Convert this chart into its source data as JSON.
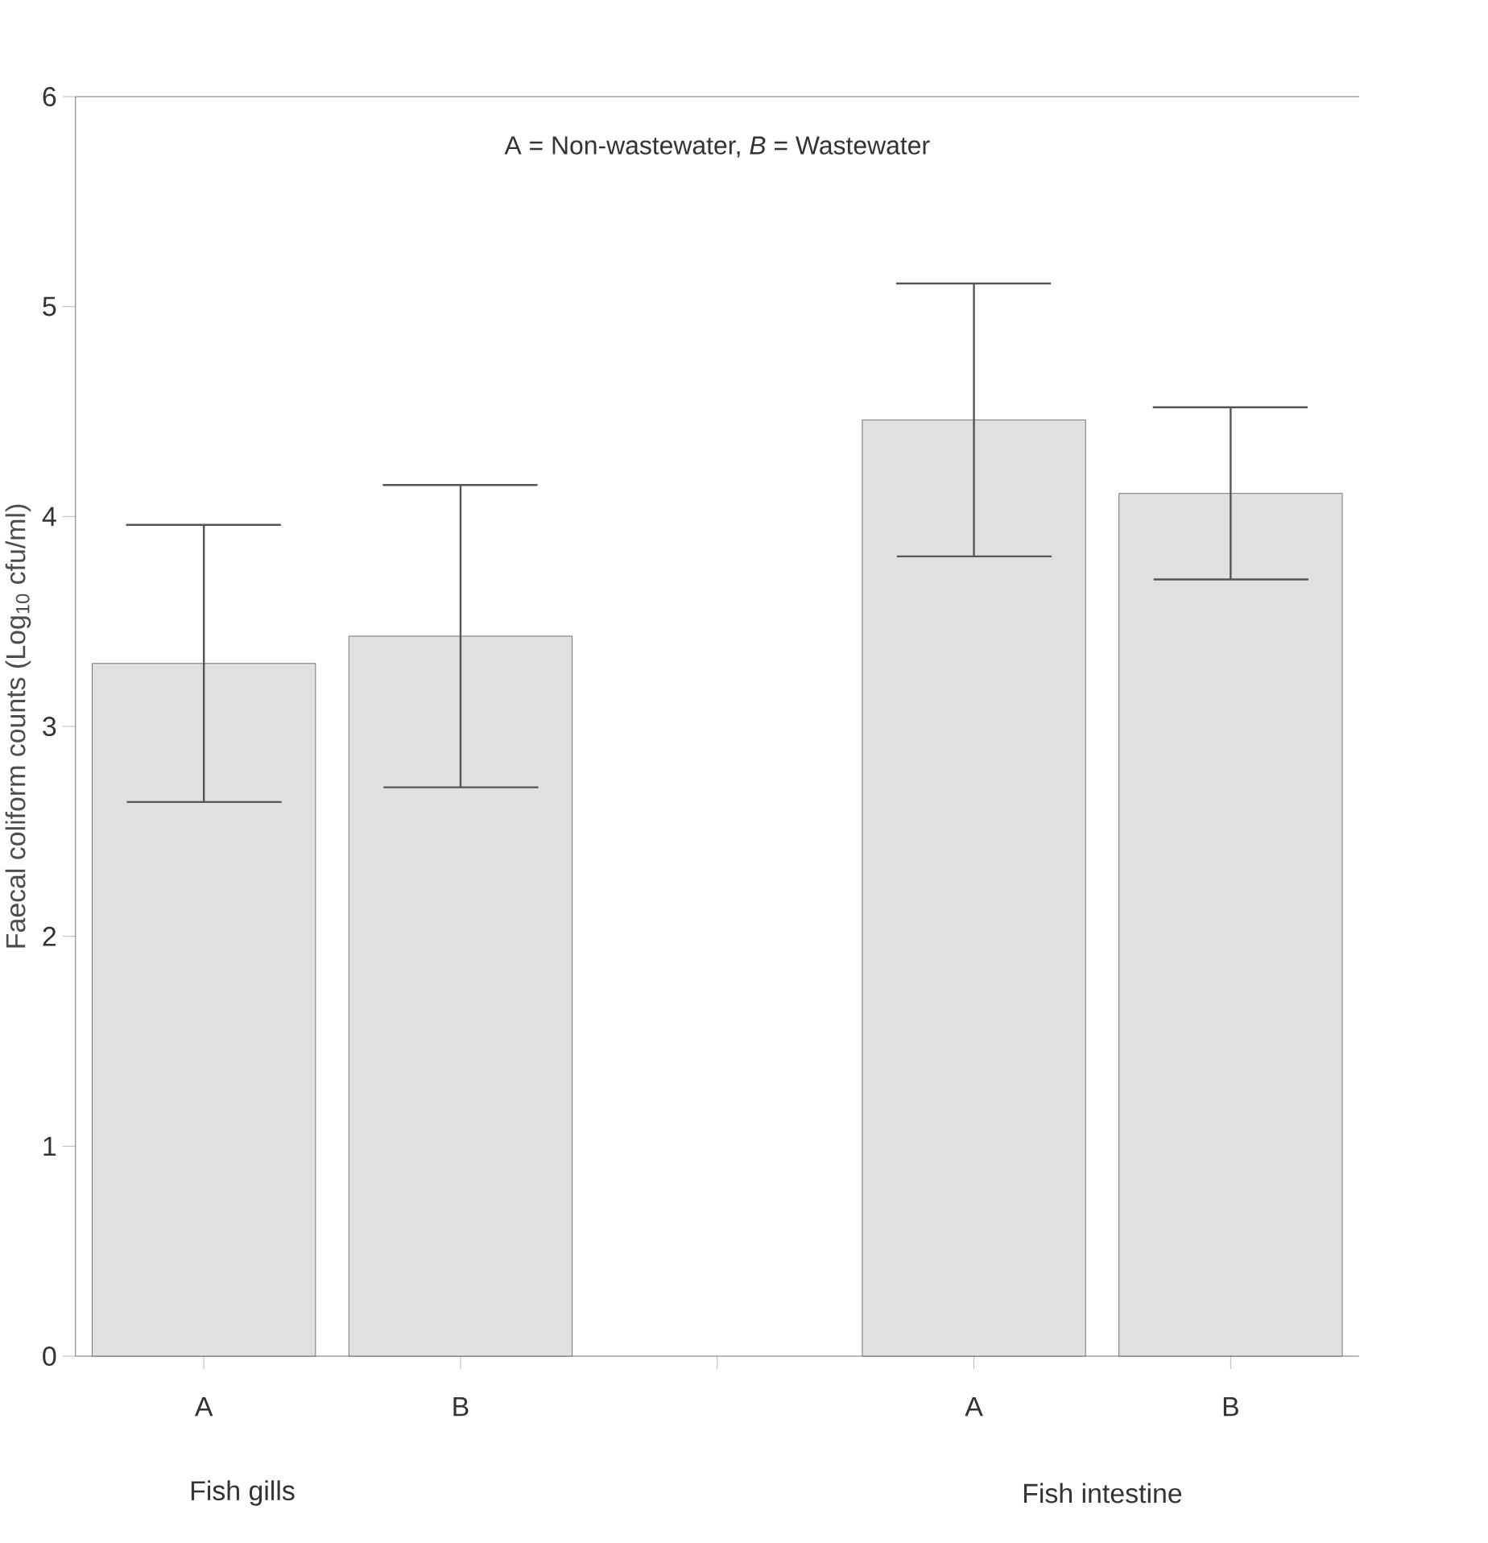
{
  "chart_data": {
    "type": "bar",
    "ylabel": "Faecal coliform counts (Log$_{10}$ cfu/ml)",
    "categories": [
      "A",
      "B",
      null,
      "A",
      "B"
    ],
    "values": [
      3.3,
      3.43,
      null,
      4.46,
      4.11
    ],
    "errors": [
      0.66,
      0.72,
      null,
      0.65,
      0.41
    ],
    "color": "#555555",
    "ylim": [
      0,
      6
    ],
    "yticks": [
      0,
      1,
      2,
      3,
      4,
      5,
      6
    ],
    "annotations": [
      "A = Non-wastewater, *B* = Wastewater",
      "Fish gills",
      "Fish intestine"
    ]
  }
}
